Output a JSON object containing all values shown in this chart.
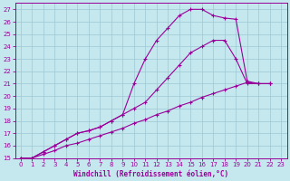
{
  "xlabel": "Windchill (Refroidissement éolien,°C)",
  "xlim": [
    -0.5,
    23.5
  ],
  "ylim": [
    15,
    27.5
  ],
  "xticks": [
    0,
    1,
    2,
    3,
    4,
    5,
    6,
    7,
    8,
    9,
    10,
    11,
    12,
    13,
    14,
    15,
    16,
    17,
    18,
    19,
    20,
    21,
    22,
    23
  ],
  "yticks": [
    15,
    16,
    17,
    18,
    19,
    20,
    21,
    22,
    23,
    24,
    25,
    26,
    27
  ],
  "bg_color": "#c5e8ef",
  "line_color": "#990099",
  "grid_color": "#9ec8d5",
  "line1_x": [
    0,
    1,
    2,
    3,
    4,
    5,
    6,
    7,
    8,
    9,
    10,
    11,
    12,
    13,
    14,
    15,
    16,
    17,
    18,
    19,
    20,
    21,
    22
  ],
  "line1_y": [
    15,
    15.0,
    15.3,
    15.6,
    16.0,
    16.2,
    16.5,
    16.8,
    17.1,
    17.4,
    17.8,
    18.1,
    18.5,
    18.8,
    19.2,
    19.5,
    19.9,
    20.2,
    20.5,
    20.8,
    21.1,
    21.0,
    21.0
  ],
  "line2_x": [
    0,
    1,
    2,
    3,
    4,
    5,
    6,
    7,
    8,
    9,
    10,
    11,
    12,
    13,
    14,
    15,
    16,
    17,
    18,
    19,
    20,
    21,
    22
  ],
  "line2_y": [
    15,
    15.0,
    15.5,
    16.0,
    16.5,
    17.0,
    17.2,
    17.5,
    18.0,
    18.5,
    19.0,
    19.5,
    20.5,
    21.5,
    22.5,
    23.5,
    24.0,
    24.5,
    24.5,
    23.0,
    21.0,
    21.0,
    21.0
  ],
  "line3_x": [
    0,
    1,
    2,
    3,
    4,
    5,
    6,
    7,
    8,
    9,
    10,
    11,
    12,
    13,
    14,
    15,
    16,
    17,
    18,
    19,
    20,
    21,
    22
  ],
  "line3_y": [
    15,
    15.0,
    15.5,
    16.0,
    16.5,
    17.0,
    17.2,
    17.5,
    18.0,
    18.5,
    21.0,
    23.0,
    24.5,
    25.5,
    26.5,
    27.0,
    27.0,
    26.5,
    26.3,
    26.2,
    21.2,
    21.0,
    21.0
  ]
}
